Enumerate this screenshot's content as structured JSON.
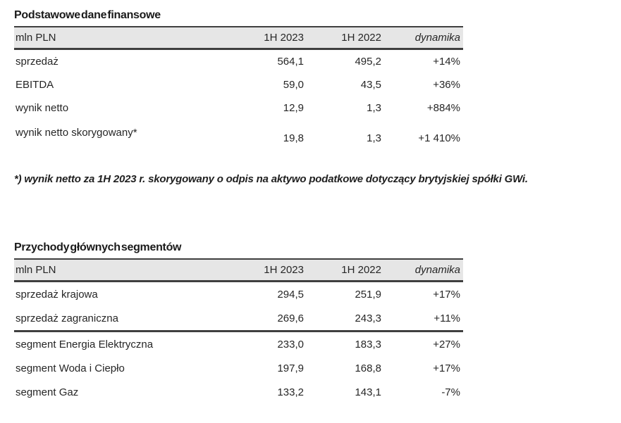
{
  "colors": {
    "header_bg": "#e6e6e6",
    "rule": "#3f3f3f",
    "text": "#262626"
  },
  "tables": [
    {
      "title": "Podstawowe dane finansowe",
      "columns": [
        "mln PLN",
        "1H 2023",
        "1H 2022",
        "dynamika"
      ],
      "rows": [
        {
          "label": "sprzedaż",
          "h1_2023": "564,1",
          "h1_2022": "495,2",
          "dynamika": "+14%"
        },
        {
          "label": "EBITDA",
          "h1_2023": "59,0",
          "h1_2022": "43,5",
          "dynamika": "+36%"
        },
        {
          "label": "wynik netto",
          "h1_2023": "12,9",
          "h1_2022": "1,3",
          "dynamika": "+884%"
        },
        {
          "label": "wynik netto skorygowany*",
          "h1_2023": "19,8",
          "h1_2022": "1,3",
          "dynamika": "+1 410%"
        }
      ],
      "footnote": "*) wynik netto za 1H 2023 r. skorygowany o odpis na aktywo podatkowe dotyczący brytyjskiej spółki GWi."
    },
    {
      "title": "Przychody głównych segmentów",
      "columns": [
        "mln PLN",
        "1H 2023",
        "1H 2022",
        "dynamika"
      ],
      "rows": [
        {
          "label": "sprzedaż krajowa",
          "h1_2023": "294,5",
          "h1_2022": "251,9",
          "dynamika": "+17%"
        },
        {
          "label": "sprzedaż zagraniczna",
          "h1_2023": "269,6",
          "h1_2022": "243,3",
          "dynamika": "+11%"
        },
        {
          "label": "segment Energia Elektryczna",
          "h1_2023": "233,0",
          "h1_2022": "183,3",
          "dynamika": "+27%"
        },
        {
          "label": "segment Woda i Ciepło",
          "h1_2023": "197,9",
          "h1_2022": "168,8",
          "dynamika": "+17%"
        },
        {
          "label": "segment Gaz",
          "h1_2023": "133,2",
          "h1_2022": "143,1",
          "dynamika": "-7%"
        }
      ]
    }
  ]
}
